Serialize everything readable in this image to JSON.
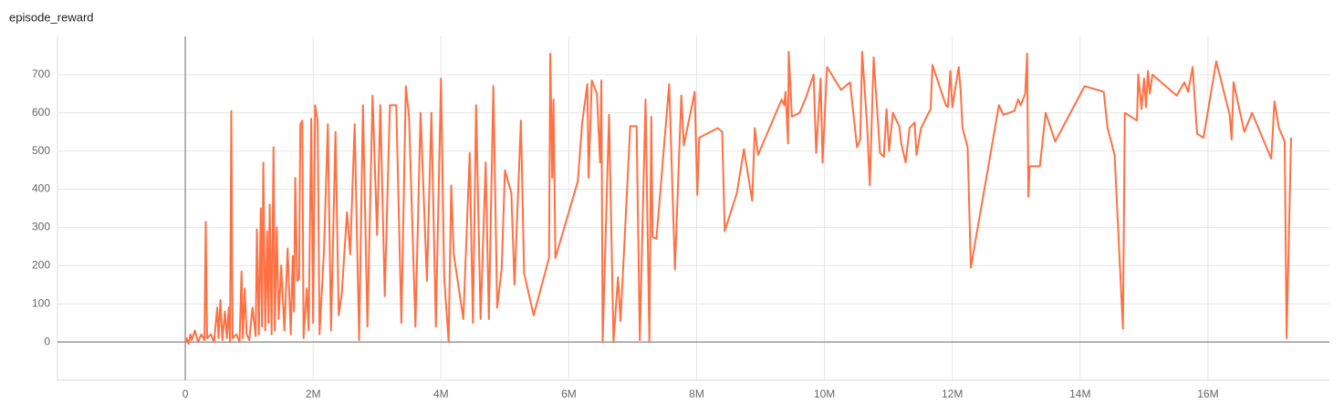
{
  "chart_data": {
    "type": "line",
    "title": "episode_reward",
    "x": [
      0,
      20000,
      50000,
      80000,
      100000,
      150000,
      200000,
      250000,
      300000,
      320000,
      340000,
      400000,
      450000,
      500000,
      520000,
      550000,
      580000,
      620000,
      650000,
      680000,
      700000,
      720000,
      740000,
      800000,
      850000,
      880000,
      900000,
      930000,
      960000,
      1000000,
      1050000,
      1100000,
      1120000,
      1150000,
      1180000,
      1200000,
      1220000,
      1250000,
      1280000,
      1300000,
      1320000,
      1350000,
      1380000,
      1400000,
      1430000,
      1460000,
      1500000,
      1550000,
      1600000,
      1650000,
      1680000,
      1700000,
      1720000,
      1750000,
      1780000,
      1800000,
      1830000,
      1850000,
      1900000,
      1930000,
      1970000,
      2000000,
      2030000,
      2070000,
      2100000,
      2170000,
      2230000,
      2280000,
      2350000,
      2400000,
      2450000,
      2530000,
      2580000,
      2650000,
      2720000,
      2780000,
      2850000,
      2930000,
      3000000,
      3050000,
      3120000,
      3200000,
      3300000,
      3380000,
      3450000,
      3500000,
      3600000,
      3680000,
      3780000,
      3850000,
      3920000,
      4000000,
      4050000,
      4120000,
      4160000,
      4200000,
      4350000,
      4450000,
      4500000,
      4550000,
      4620000,
      4700000,
      4750000,
      4820000,
      4880000,
      4950000,
      5000000,
      5100000,
      5150000,
      5250000,
      5300000,
      5450000,
      5690000,
      5710000,
      5740000,
      5760000,
      5790000,
      6140000,
      6210000,
      6290000,
      6310000,
      6360000,
      6440000,
      6490000,
      6510000,
      6530000,
      6630000,
      6700000,
      6770000,
      6810000,
      6960000,
      7060000,
      7110000,
      7200000,
      7260000,
      7290000,
      7310000,
      7370000,
      7570000,
      7660000,
      7760000,
      7800000,
      7970000,
      8010000,
      8040000,
      8330000,
      8400000,
      8440000,
      8630000,
      8740000,
      8870000,
      8910000,
      8960000,
      9330000,
      9370000,
      9390000,
      9430000,
      9440000,
      9490000,
      9610000,
      9710000,
      9830000,
      9870000,
      9940000,
      9970000,
      10040000,
      10260000,
      10400000,
      10510000,
      10560000,
      10590000,
      10670000,
      10710000,
      10770000,
      10870000,
      10930000,
      10970000,
      11010000,
      11070000,
      11170000,
      11200000,
      11270000,
      11330000,
      11410000,
      11440000,
      11510000,
      11660000,
      11690000,
      11900000,
      11930000,
      11970000,
      12000000,
      12100000,
      12130000,
      12160000,
      12240000,
      12290000,
      12730000,
      12800000,
      12970000,
      13030000,
      13070000,
      13140000,
      13170000,
      13190000,
      13210000,
      13370000,
      13460000,
      13610000,
      14070000,
      14370000,
      14430000,
      14540000,
      14670000,
      14700000,
      14890000,
      14910000,
      14960000,
      15000000,
      15030000,
      15060000,
      15090000,
      15130000,
      15510000,
      15630000,
      15690000,
      15760000,
      15830000,
      15930000,
      16130000,
      16340000,
      16370000,
      16400000,
      16570000,
      16690000,
      16990000,
      17040000,
      17110000,
      17200000,
      17230000,
      17300000
    ],
    "series": [
      {
        "color": "#ff7043",
        "values": [
          0,
          10,
          -5,
          20,
          5,
          30,
          0,
          20,
          5,
          315,
          10,
          20,
          0,
          90,
          10,
          110,
          5,
          80,
          10,
          90,
          0,
          605,
          10,
          20,
          0,
          185,
          10,
          140,
          20,
          5,
          90,
          15,
          295,
          20,
          350,
          40,
          470,
          30,
          290,
          50,
          360,
          20,
          510,
          30,
          300,
          60,
          200,
          30,
          245,
          20,
          225,
          80,
          430,
          160,
          165,
          570,
          580,
          10,
          140,
          30,
          585,
          50,
          620,
          580,
          20,
          240,
          570,
          30,
          550,
          70,
          130,
          340,
          230,
          570,
          5,
          620,
          40,
          645,
          280,
          620,
          120,
          620,
          620,
          50,
          670,
          590,
          40,
          600,
          160,
          600,
          40,
          690,
          170,
          0,
          410,
          230,
          60,
          495,
          50,
          620,
          60,
          470,
          60,
          670,
          90,
          190,
          450,
          390,
          150,
          580,
          180,
          70,
          220,
          755,
          430,
          635,
          220,
          420,
          575,
          675,
          430,
          685,
          650,
          470,
          685,
          0,
          595,
          0,
          170,
          55,
          565,
          565,
          5,
          635,
          0,
          590,
          275,
          270,
          675,
          190,
          645,
          515,
          655,
          385,
          535,
          560,
          550,
          290,
          390,
          505,
          370,
          560,
          490,
          635,
          620,
          655,
          520,
          760,
          590,
          600,
          640,
          700,
          495,
          690,
          470,
          720,
          660,
          680,
          510,
          530,
          760,
          560,
          410,
          745,
          495,
          485,
          610,
          500,
          600,
          565,
          520,
          470,
          560,
          575,
          490,
          560,
          610,
          725,
          620,
          615,
          710,
          615,
          720,
          660,
          560,
          510,
          195,
          620,
          595,
          605,
          635,
          620,
          650,
          755,
          380,
          460,
          460,
          600,
          525,
          670,
          655,
          560,
          490,
          35,
          600,
          580,
          700,
          610,
          690,
          615,
          710,
          650,
          700,
          645,
          680,
          655,
          720,
          545,
          535,
          735,
          595,
          530,
          680,
          550,
          600,
          480,
          630,
          560,
          525,
          10,
          535
        ]
      }
    ],
    "xlim": [
      -2000000,
      17900000
    ],
    "xticks": [
      0,
      {
        "value": 2000000,
        "label": "2M"
      },
      {
        "value": 4000000,
        "label": "4M"
      },
      {
        "value": 6000000,
        "label": "6M"
      },
      {
        "value": 8000000,
        "label": "8M"
      },
      {
        "value": 10000000,
        "label": "10M"
      },
      {
        "value": 12000000,
        "label": "12M"
      },
      {
        "value": 14000000,
        "label": "14M"
      },
      {
        "value": 16000000,
        "label": "16M"
      }
    ],
    "ylim": [
      -100,
      800
    ],
    "yticks": [
      0,
      100,
      200,
      300,
      400,
      500,
      600,
      700
    ],
    "grid": true
  }
}
